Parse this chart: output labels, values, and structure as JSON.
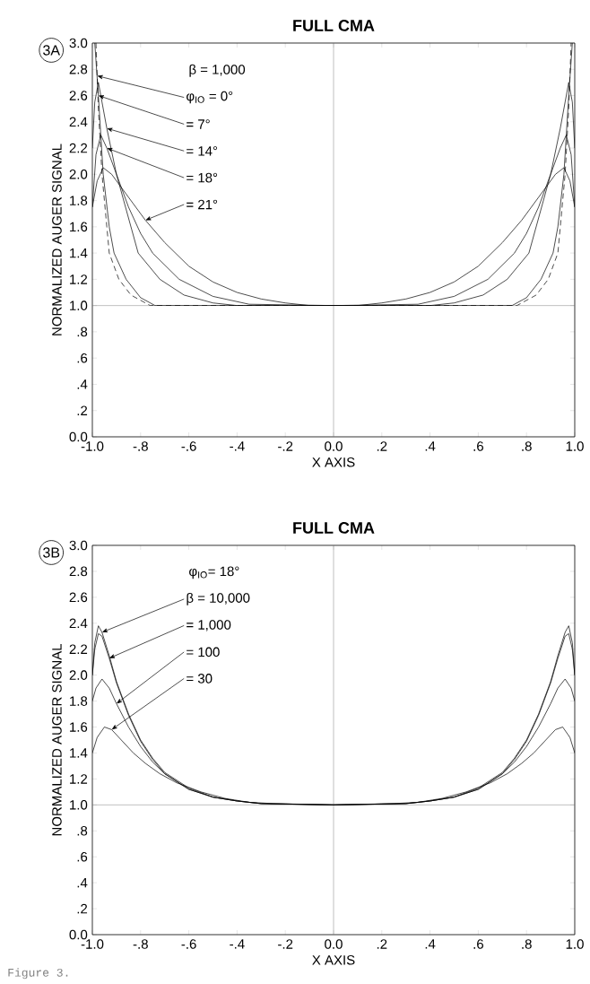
{
  "chart_data": [
    {
      "type": "line",
      "title": "FULL CMA",
      "xlabel": "X AXIS",
      "ylabel": "NORMALIZED AUGER SIGNAL",
      "marker": "none",
      "xlim": [
        -1.0,
        1.0
      ],
      "ylim": [
        0.0,
        3.0
      ],
      "xticks": [
        {
          "value": -1.0,
          "label": "-1.0"
        },
        {
          "value": -0.8,
          "label": "-.8"
        },
        {
          "value": -0.6,
          "label": "-.6"
        },
        {
          "value": -0.4,
          "label": "-.4"
        },
        {
          "value": -0.2,
          "label": "-.2"
        },
        {
          "value": 0.0,
          "label": "0.0"
        },
        {
          "value": 0.2,
          "label": ".2"
        },
        {
          "value": 0.4,
          "label": ".4"
        },
        {
          "value": 0.6,
          "label": ".6"
        },
        {
          "value": 0.8,
          "label": ".8"
        },
        {
          "value": 1.0,
          "label": "1.0"
        }
      ],
      "yticks": [
        {
          "value": 0.0,
          "label": "0.0"
        },
        {
          "value": 0.2,
          "label": ".2"
        },
        {
          "value": 0.4,
          "label": ".4"
        },
        {
          "value": 0.6,
          "label": ".6"
        },
        {
          "value": 0.8,
          "label": ".8"
        },
        {
          "value": 1.0,
          "label": "1.0"
        },
        {
          "value": 1.2,
          "label": "1.2"
        },
        {
          "value": 1.4,
          "label": "1.4"
        },
        {
          "value": 1.6,
          "label": "1.6"
        },
        {
          "value": 1.8,
          "label": "1.8"
        },
        {
          "value": 2.0,
          "label": "2.0"
        },
        {
          "value": 2.2,
          "label": "2.2"
        },
        {
          "value": 2.4,
          "label": "2.4"
        },
        {
          "value": 2.6,
          "label": "2.6"
        },
        {
          "value": 2.8,
          "label": "2.8"
        },
        {
          "value": 3.0,
          "label": "3.0"
        }
      ],
      "ref_lines": [
        {
          "axis": "y",
          "value": 1.0,
          "color": "#808080"
        },
        {
          "axis": "x",
          "value": 0.0,
          "color": "#808080"
        }
      ],
      "series": [
        {
          "color": "#000000",
          "line_style": "dashed",
          "x": [
            -0.985,
            -0.975,
            -0.96,
            -0.94,
            -0.93,
            -0.89,
            -0.84,
            -0.76,
            0,
            0.76,
            0.84,
            0.89,
            0.93,
            0.94,
            0.96,
            0.975,
            0.985
          ],
          "values": [
            3.0,
            2.5,
            2.0,
            1.6,
            1.4,
            1.2,
            1.08,
            1.0,
            1.0,
            1.0,
            1.08,
            1.2,
            1.4,
            1.6,
            2.0,
            2.5,
            3.0
          ]
        },
        {
          "color": "#000000",
          "line_style": "solid",
          "x": [
            -0.99,
            -0.975,
            -0.955,
            -0.93,
            -0.91,
            -0.86,
            -0.8,
            -0.74,
            0,
            0.74,
            0.8,
            0.86,
            0.91,
            0.93,
            0.955,
            0.975,
            0.99
          ],
          "values": [
            3.0,
            2.6,
            2.0,
            1.6,
            1.4,
            1.2,
            1.06,
            1.0,
            1.0,
            1.0,
            1.06,
            1.2,
            1.4,
            1.6,
            2.0,
            2.6,
            3.0
          ]
        },
        {
          "color": "#000000",
          "line_style": "solid",
          "x": [
            -1.0,
            -0.99,
            -0.975,
            -0.96,
            -0.94,
            -0.9,
            -0.84,
            -0.81,
            -0.72,
            -0.62,
            -0.5,
            -0.4,
            0,
            0.4,
            0.5,
            0.62,
            0.72,
            0.81,
            0.84,
            0.9,
            0.94,
            0.96,
            0.975,
            0.99,
            1.0
          ],
          "values": [
            2.2,
            2.55,
            2.7,
            2.55,
            2.35,
            2.0,
            1.6,
            1.4,
            1.2,
            1.08,
            1.02,
            1.0,
            1.0,
            1.0,
            1.02,
            1.08,
            1.2,
            1.4,
            1.6,
            2.0,
            2.35,
            2.55,
            2.7,
            2.55,
            2.2
          ]
        },
        {
          "color": "#000000",
          "line_style": "solid",
          "x": [
            -1.0,
            -0.985,
            -0.965,
            -0.94,
            -0.9,
            -0.85,
            -0.8,
            -0.75,
            -0.64,
            -0.5,
            -0.35,
            0,
            0.35,
            0.5,
            0.64,
            0.75,
            0.8,
            0.85,
            0.9,
            0.94,
            0.965,
            0.985,
            1.0
          ],
          "values": [
            1.75,
            2.15,
            2.3,
            2.2,
            2.0,
            1.75,
            1.55,
            1.4,
            1.2,
            1.07,
            1.01,
            1.0,
            1.01,
            1.07,
            1.2,
            1.4,
            1.55,
            1.75,
            2.0,
            2.2,
            2.3,
            2.15,
            1.75
          ]
        },
        {
          "color": "#000000",
          "line_style": "solid",
          "x": [
            -1.0,
            -0.98,
            -0.955,
            -0.92,
            -0.86,
            -0.78,
            -0.7,
            -0.6,
            -0.5,
            -0.4,
            -0.3,
            -0.2,
            -0.1,
            0,
            0.1,
            0.2,
            0.3,
            0.4,
            0.5,
            0.6,
            0.7,
            0.78,
            0.86,
            0.92,
            0.955,
            0.98,
            1.0
          ],
          "values": [
            1.75,
            1.95,
            2.05,
            2.0,
            1.85,
            1.65,
            1.48,
            1.3,
            1.18,
            1.1,
            1.05,
            1.02,
            1.0,
            1.0,
            1.0,
            1.02,
            1.05,
            1.1,
            1.18,
            1.3,
            1.48,
            1.65,
            1.85,
            2.0,
            2.05,
            1.95,
            1.75
          ]
        }
      ],
      "annotations": [
        "3A",
        "β = 1,000",
        {
          "text": "φ$_{IO}$ = 0°",
          "x": -0.98,
          "y": 2.75
        },
        {
          "text": "= 7°",
          "x": -0.975,
          "y": 2.6
        },
        {
          "text": "= 14°",
          "x": -0.94,
          "y": 2.35
        },
        {
          "text": "= 18°",
          "x": -0.94,
          "y": 2.2
        },
        {
          "text": "= 21°",
          "x": -0.78,
          "y": 1.65
        }
      ]
    },
    {
      "type": "line",
      "title": "FULL CMA",
      "xlabel": "X AXIS",
      "ylabel": "NORMALIZED AUGER SIGNAL",
      "marker": "none",
      "xlim": [
        -1.0,
        1.0
      ],
      "ylim": [
        0.0,
        3.0
      ],
      "xticks": [
        {
          "value": -1.0,
          "label": "-1.0"
        },
        {
          "value": -0.8,
          "label": "-.8"
        },
        {
          "value": -0.6,
          "label": "-.6"
        },
        {
          "value": -0.4,
          "label": "-.4"
        },
        {
          "value": -0.2,
          "label": "-.2"
        },
        {
          "value": 0.0,
          "label": "0.0"
        },
        {
          "value": 0.2,
          "label": ".2"
        },
        {
          "value": 0.4,
          "label": ".4"
        },
        {
          "value": 0.6,
          "label": ".6"
        },
        {
          "value": 0.8,
          "label": ".8"
        },
        {
          "value": 1.0,
          "label": "1.0"
        }
      ],
      "yticks": [
        {
          "value": 0.0,
          "label": "0.0"
        },
        {
          "value": 0.2,
          "label": ".2"
        },
        {
          "value": 0.4,
          "label": ".4"
        },
        {
          "value": 0.6,
          "label": ".6"
        },
        {
          "value": 0.8,
          "label": ".8"
        },
        {
          "value": 1.0,
          "label": "1.0"
        },
        {
          "value": 1.2,
          "label": "1.2"
        },
        {
          "value": 1.4,
          "label": "1.4"
        },
        {
          "value": 1.6,
          "label": "1.6"
        },
        {
          "value": 1.8,
          "label": "1.8"
        },
        {
          "value": 2.0,
          "label": "2.0"
        },
        {
          "value": 2.2,
          "label": "2.2"
        },
        {
          "value": 2.4,
          "label": "2.4"
        },
        {
          "value": 2.6,
          "label": "2.6"
        },
        {
          "value": 2.8,
          "label": "2.8"
        },
        {
          "value": 3.0,
          "label": "3.0"
        }
      ],
      "ref_lines": [
        {
          "axis": "y",
          "value": 1.0,
          "color": "#808080"
        },
        {
          "axis": "x",
          "value": 0.0,
          "color": "#808080"
        }
      ],
      "series": [
        {
          "color": "#000000",
          "line_style": "solid",
          "x": [
            -1.0,
            -0.99,
            -0.975,
            -0.96,
            -0.93,
            -0.9,
            -0.85,
            -0.8,
            -0.75,
            -0.7,
            -0.6,
            -0.5,
            -0.4,
            -0.3,
            0,
            0.3,
            0.4,
            0.5,
            0.6,
            0.7,
            0.75,
            0.8,
            0.85,
            0.9,
            0.93,
            0.96,
            0.975,
            0.99,
            1.0
          ],
          "values": [
            2.0,
            2.25,
            2.38,
            2.33,
            2.15,
            1.95,
            1.7,
            1.5,
            1.36,
            1.25,
            1.13,
            1.06,
            1.03,
            1.01,
            1.0,
            1.01,
            1.03,
            1.06,
            1.13,
            1.25,
            1.36,
            1.5,
            1.7,
            1.95,
            2.15,
            2.33,
            2.38,
            2.25,
            2.0
          ]
        },
        {
          "color": "#000000",
          "line_style": "solid",
          "x": [
            -1.0,
            -0.99,
            -0.975,
            -0.96,
            -0.93,
            -0.9,
            -0.85,
            -0.8,
            -0.75,
            -0.7,
            -0.6,
            -0.5,
            -0.4,
            -0.3,
            0,
            0.3,
            0.4,
            0.5,
            0.6,
            0.7,
            0.75,
            0.8,
            0.85,
            0.9,
            0.93,
            0.96,
            0.975,
            0.99,
            1.0
          ],
          "values": [
            2.0,
            2.2,
            2.32,
            2.3,
            2.13,
            1.94,
            1.69,
            1.49,
            1.35,
            1.24,
            1.12,
            1.06,
            1.03,
            1.01,
            1.0,
            1.01,
            1.03,
            1.06,
            1.12,
            1.24,
            1.35,
            1.49,
            1.69,
            1.94,
            2.13,
            2.3,
            2.32,
            2.2,
            2.0
          ]
        },
        {
          "color": "#000000",
          "line_style": "solid",
          "x": [
            -1.0,
            -0.985,
            -0.96,
            -0.93,
            -0.9,
            -0.85,
            -0.8,
            -0.75,
            -0.7,
            -0.6,
            -0.5,
            -0.4,
            -0.3,
            0,
            0.3,
            0.4,
            0.5,
            0.6,
            0.7,
            0.75,
            0.8,
            0.85,
            0.9,
            0.93,
            0.96,
            0.985,
            1.0
          ],
          "values": [
            1.8,
            1.9,
            1.97,
            1.9,
            1.78,
            1.6,
            1.45,
            1.33,
            1.24,
            1.12,
            1.06,
            1.03,
            1.01,
            1.0,
            1.01,
            1.03,
            1.06,
            1.12,
            1.24,
            1.33,
            1.45,
            1.6,
            1.78,
            1.9,
            1.97,
            1.9,
            1.8
          ]
        },
        {
          "color": "#000000",
          "line_style": "solid",
          "x": [
            -1.0,
            -0.98,
            -0.95,
            -0.92,
            -0.88,
            -0.83,
            -0.78,
            -0.72,
            -0.65,
            -0.55,
            -0.45,
            -0.35,
            -0.25,
            0,
            0.25,
            0.35,
            0.45,
            0.55,
            0.65,
            0.72,
            0.78,
            0.83,
            0.88,
            0.92,
            0.95,
            0.98,
            1.0
          ],
          "values": [
            1.4,
            1.52,
            1.6,
            1.58,
            1.5,
            1.4,
            1.32,
            1.24,
            1.17,
            1.1,
            1.05,
            1.02,
            1.01,
            1.0,
            1.01,
            1.02,
            1.05,
            1.1,
            1.17,
            1.24,
            1.32,
            1.4,
            1.5,
            1.58,
            1.6,
            1.52,
            1.4
          ]
        }
      ],
      "annotations": [
        "3B",
        "φ$_{IO}$= 18°",
        "Figure 3.",
        {
          "text": "β = 10,000",
          "x": -0.96,
          "y": 2.33
        },
        {
          "text": "= 1,000",
          "x": -0.93,
          "y": 2.13
        },
        {
          "text": "= 100",
          "x": -0.9,
          "y": 1.78
        },
        {
          "text": "= 30",
          "x": -0.92,
          "y": 1.58
        }
      ]
    }
  ]
}
